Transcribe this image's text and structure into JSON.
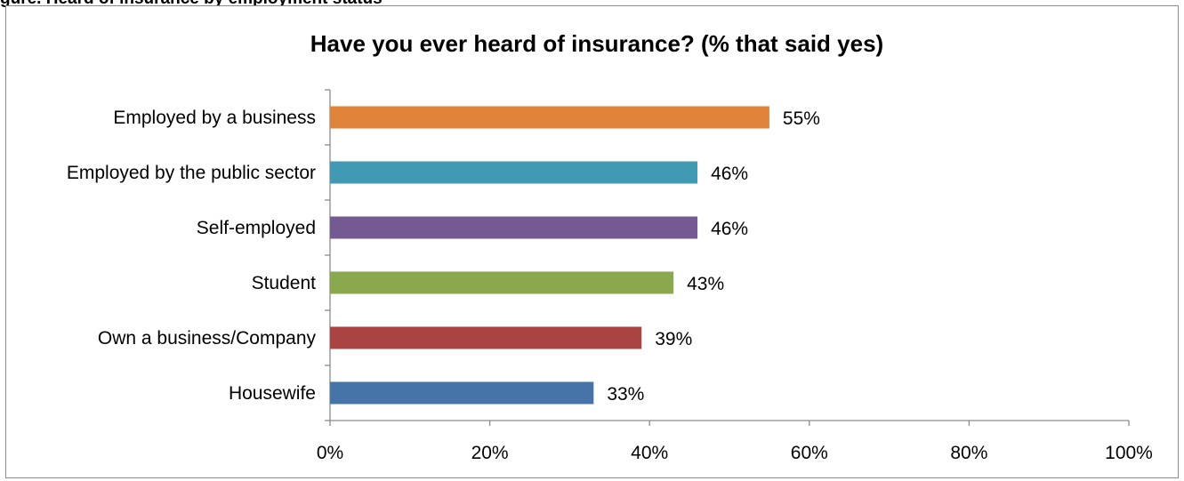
{
  "caption": "gure. Heard of insurance by employment status",
  "chart_data": {
    "type": "bar",
    "orientation": "horizontal",
    "title": "Have you ever heard of insurance? (% that said yes)",
    "xlabel": "",
    "ylabel": "",
    "xlim": [
      0,
      100
    ],
    "x_tick_step": 20,
    "x_tick_format": "percent",
    "grid": false,
    "legend": "none",
    "categories": [
      "Employed by a business",
      "Employed by the public sector",
      "Self-employed",
      "Student",
      "Own a business/Company",
      "Housewife"
    ],
    "values": [
      55,
      46,
      46,
      43,
      39,
      33
    ],
    "data_labels": [
      "55%",
      "46%",
      "46%",
      "43%",
      "39%",
      "33%"
    ],
    "x_tick_labels": [
      "0%",
      "20%",
      "40%",
      "60%",
      "80%",
      "100%"
    ],
    "bar_colors": [
      "#e0843c",
      "#4299b4",
      "#735a92",
      "#8aa84e",
      "#aa4443",
      "#4673a8"
    ]
  }
}
